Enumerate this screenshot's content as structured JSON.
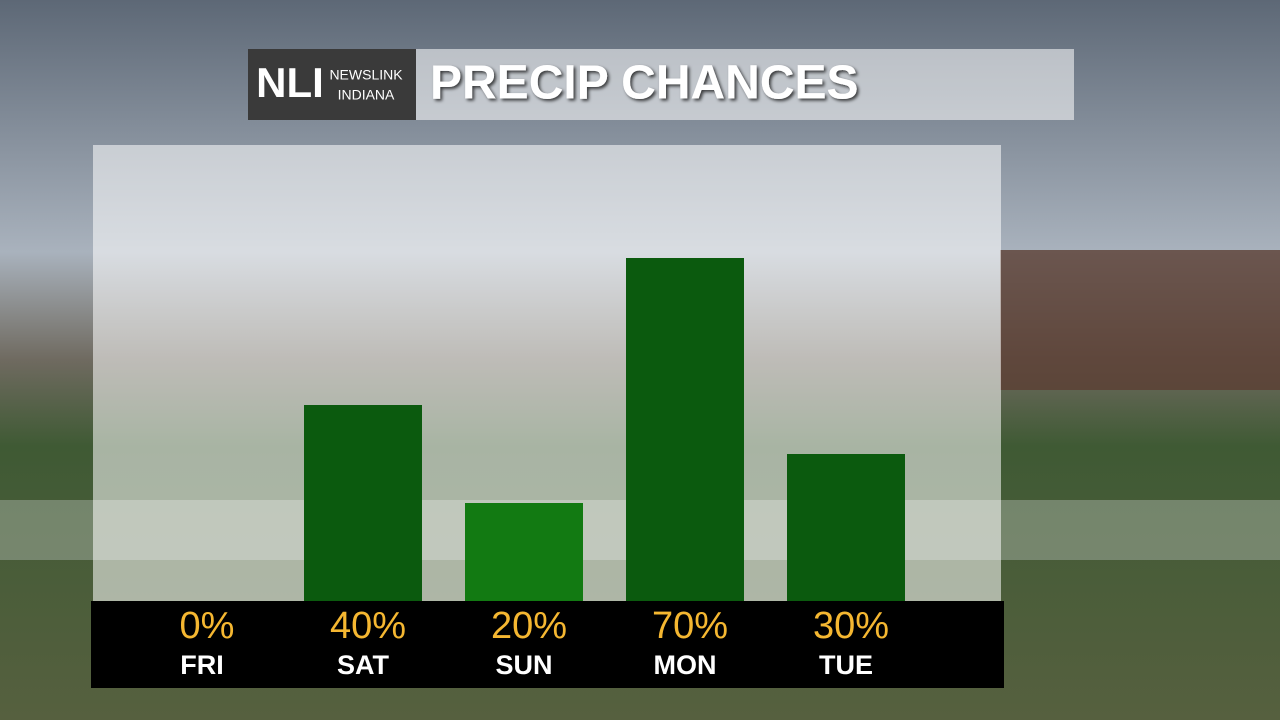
{
  "header": {
    "logo_mark": "NLI",
    "logo_line1": "NEWSLINK",
    "logo_line2": "INDIANA"
  },
  "chart_data": {
    "type": "bar",
    "title": "PRECIP CHANCES",
    "categories": [
      "FRI",
      "SAT",
      "SUN",
      "MON",
      "TUE"
    ],
    "values": [
      0,
      40,
      20,
      70,
      30
    ],
    "value_labels": [
      "0%",
      "40%",
      "20%",
      "70%",
      "30%"
    ],
    "colors": [
      "#127a12",
      "#0b5a0e",
      "#127a12",
      "#0b5a0e",
      "#0b5a0e"
    ],
    "value_label_color": "#f5b731"
  }
}
